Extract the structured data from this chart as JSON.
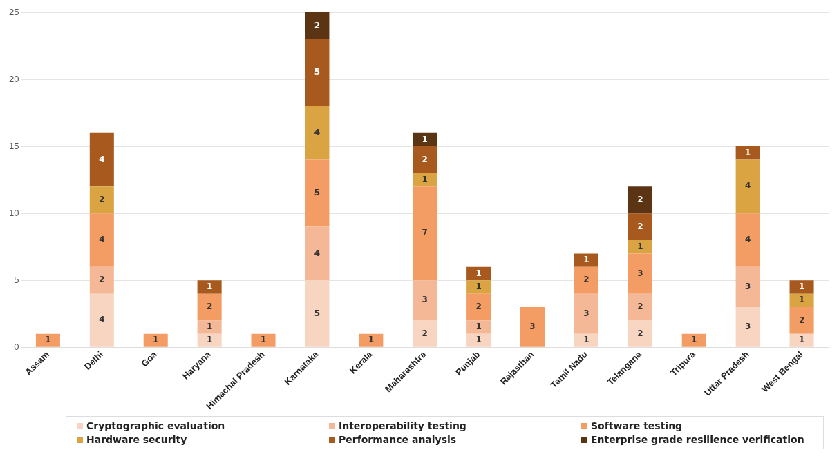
{
  "chart_data": {
    "type": "bar",
    "stacked": true,
    "data_labels": true,
    "grid": "y",
    "legend": "bottom",
    "categories": [
      "Assam",
      "Delhi",
      "Goa",
      "Haryana",
      "Himachal Pradesh",
      "Karnataka",
      "Kerala",
      "Maharashtra",
      "Punjab",
      "Rajasthan",
      "Tamil Nadu",
      "Telangana",
      "Tripura",
      "Uttar Pradesh",
      "West Bengal"
    ],
    "ylim": [
      0,
      25
    ],
    "yticks": [
      0,
      5,
      10,
      15,
      20,
      25
    ],
    "series": [
      {
        "name": "Cryptographic evaluation",
        "color": "#f8d5c0",
        "values": [
          null,
          4,
          null,
          1,
          null,
          5,
          null,
          2,
          1,
          null,
          1,
          2,
          null,
          3,
          1
        ]
      },
      {
        "name": "Interoperability testing",
        "color": "#f4b896",
        "values": [
          null,
          2,
          null,
          1,
          null,
          4,
          null,
          3,
          1,
          null,
          3,
          2,
          null,
          3,
          null
        ]
      },
      {
        "name": "Software testing",
        "color": "#f39c64",
        "values": [
          1,
          4,
          1,
          2,
          1,
          5,
          1,
          7,
          2,
          3,
          2,
          3,
          1,
          4,
          2
        ]
      },
      {
        "name": "Hardware security",
        "color": "#d9a441",
        "values": [
          null,
          2,
          null,
          null,
          null,
          4,
          null,
          1,
          1,
          null,
          null,
          1,
          null,
          4,
          1
        ]
      },
      {
        "name": "Performance analysis",
        "color": "#a85a1e",
        "values": [
          null,
          4,
          null,
          1,
          null,
          5,
          null,
          2,
          1,
          null,
          1,
          2,
          null,
          1,
          1
        ]
      },
      {
        "name": "Enterprise grade resilience verification",
        "color": "#5b3414",
        "values": [
          null,
          null,
          null,
          null,
          null,
          2,
          null,
          1,
          null,
          null,
          null,
          2,
          null,
          null,
          null
        ]
      }
    ]
  }
}
